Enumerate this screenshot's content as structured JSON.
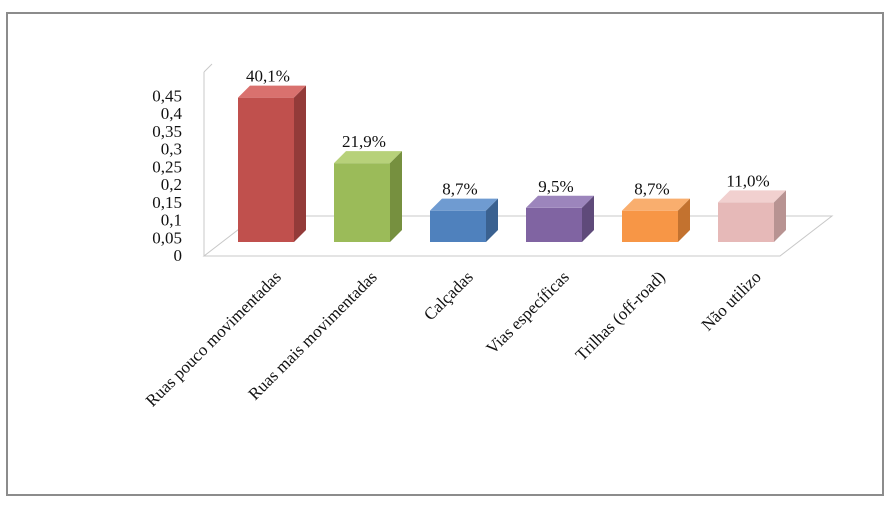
{
  "chart_data": {
    "type": "bar",
    "categories": [
      "Ruas pouco movimentadas",
      "Ruas mais movimentadas",
      "Calçadas",
      "Vias específicas",
      "Trilhas (off-road)",
      "Não utilizo"
    ],
    "values": [
      0.401,
      0.219,
      0.087,
      0.095,
      0.087,
      0.11
    ],
    "data_labels": [
      "40,1%",
      "21,9%",
      "8,7%",
      "9,5%",
      "8,7%",
      "11,0%"
    ],
    "y_ticks": [
      "0",
      "0,05",
      "0,1",
      "0,15",
      "0,2",
      "0,25",
      "0,3",
      "0,35",
      "0,4",
      "0,45"
    ],
    "ylim": [
      0,
      0.45
    ],
    "title": "",
    "xlabel": "",
    "ylabel": "",
    "grid": false,
    "legend": "none",
    "style": "3d-bar",
    "colors": {
      "front": [
        "#c0504d",
        "#9bbb59",
        "#4f81bd",
        "#8064a2",
        "#f79646",
        "#e6b9b8"
      ],
      "top": [
        "#d9716e",
        "#b7d17a",
        "#6f9bd1",
        "#9c85bc",
        "#f9ae6e",
        "#f1d0cf"
      ],
      "side": [
        "#933b39",
        "#76903f",
        "#3a6190",
        "#5f4a7a",
        "#c3722f",
        "#b89392"
      ]
    }
  }
}
